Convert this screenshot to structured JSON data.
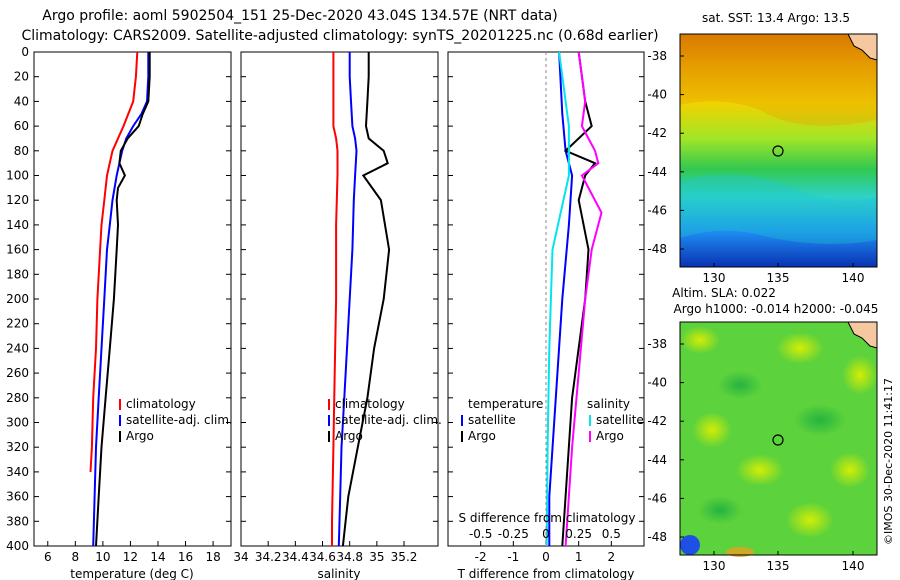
{
  "header": {
    "title_line1": "Argo profile: aoml 5902504_151 25-Dec-2020 43.04S 134.57E (NRT data)",
    "title_line2": "Climatology: CARS2009. Satellite-adjusted climatology: synTS_20201225.nc (0.68d earlier)"
  },
  "stamp": "©IMOS 30-Dec-2020 11:41:17",
  "colors": {
    "climatology": "#ff0000",
    "satellite": "#0000ff",
    "argo": "#000000",
    "sat_diff": "#00e5ee",
    "argo_diff": "#ff00ff"
  },
  "chart_data": [
    {
      "type": "line",
      "name": "temperature",
      "xlabel": "temperature (deg C)",
      "xlim": [
        5,
        19.3
      ],
      "xticks": [
        6,
        8,
        10,
        12,
        14,
        16,
        18
      ],
      "ylim": [
        0,
        400
      ],
      "yticks": [
        0,
        20,
        40,
        60,
        80,
        100,
        120,
        140,
        160,
        180,
        200,
        220,
        240,
        260,
        280,
        300,
        320,
        340,
        360,
        380,
        400
      ],
      "legend": [
        "climatology",
        "satellite-adj. clim.",
        "Argo"
      ],
      "series": [
        {
          "name": "climatology",
          "depth": [
            0,
            20,
            40,
            60,
            80,
            100,
            120,
            140,
            160,
            200,
            240,
            280,
            320,
            340
          ],
          "values": [
            12.5,
            12.4,
            12.2,
            11.5,
            10.7,
            10.3,
            10.1,
            9.9,
            9.8,
            9.6,
            9.5,
            9.3,
            9.2,
            9.1
          ]
        },
        {
          "name": "satellite-adj. clim.",
          "depth": [
            0,
            20,
            40,
            50,
            60,
            70,
            80,
            90,
            100,
            120,
            140,
            160,
            200,
            240,
            280,
            320,
            360,
            400
          ],
          "values": [
            13.3,
            13.3,
            13.2,
            12.8,
            12.2,
            11.7,
            11.4,
            11.2,
            11.0,
            10.7,
            10.5,
            10.3,
            10.1,
            9.9,
            9.7,
            9.5,
            9.4,
            9.3
          ]
        },
        {
          "name": "Argo",
          "depth": [
            0,
            20,
            40,
            50,
            60,
            70,
            80,
            90,
            100,
            110,
            120,
            140,
            160,
            200,
            240,
            280,
            320,
            360,
            400
          ],
          "values": [
            13.4,
            13.4,
            13.3,
            12.9,
            12.6,
            11.8,
            11.3,
            11.2,
            11.6,
            11.1,
            11.0,
            11.1,
            11.0,
            10.8,
            10.5,
            10.2,
            9.9,
            9.7,
            9.5
          ]
        }
      ]
    },
    {
      "type": "line",
      "name": "salinity",
      "xlabel": "salinity",
      "xlim": [
        34.0,
        35.45
      ],
      "xticks": [
        34,
        34.2,
        34.4,
        34.6,
        34.8,
        35,
        35.2
      ],
      "tick_labels": [
        "34",
        "34.2",
        "34.4",
        "34.6",
        "34.8",
        "35",
        "35.2"
      ],
      "ylim": [
        0,
        400
      ],
      "legend": [
        "climatology",
        "satellite-adj. clim.",
        "Argo"
      ],
      "series": [
        {
          "name": "climatology",
          "depth": [
            0,
            20,
            40,
            60,
            70,
            80,
            100,
            140,
            200,
            260,
            320,
            380,
            400
          ],
          "values": [
            34.68,
            34.68,
            34.68,
            34.68,
            34.7,
            34.71,
            34.71,
            34.7,
            34.7,
            34.69,
            34.68,
            34.67,
            34.67
          ]
        },
        {
          "name": "satellite-adj. clim.",
          "depth": [
            0,
            20,
            40,
            60,
            70,
            80,
            100,
            120,
            160,
            200,
            240,
            280,
            320,
            360,
            400
          ],
          "values": [
            34.8,
            34.8,
            34.81,
            34.82,
            34.84,
            34.85,
            34.84,
            34.83,
            34.82,
            34.8,
            34.78,
            34.76,
            34.74,
            34.73,
            34.72
          ]
        },
        {
          "name": "Argo",
          "depth": [
            0,
            20,
            40,
            60,
            70,
            80,
            90,
            100,
            120,
            160,
            200,
            240,
            280,
            320,
            360,
            400
          ],
          "values": [
            34.94,
            34.94,
            34.93,
            34.92,
            34.94,
            35.05,
            35.08,
            34.9,
            35.03,
            35.09,
            35.05,
            34.98,
            34.93,
            34.86,
            34.79,
            34.75
          ]
        }
      ]
    },
    {
      "type": "line",
      "name": "difference",
      "xlabel": "T difference from climatology",
      "top_label": "S difference from climatology",
      "xlim": [
        -3,
        3
      ],
      "xticks": [
        -2,
        -1,
        0,
        1,
        2
      ],
      "top_ticks": [
        "-0.5",
        "-0.25",
        "0",
        "0.25",
        "0.5"
      ],
      "ylim": [
        0,
        400
      ],
      "legend_left_title": "temperature",
      "legend_right_title": "salinity",
      "legend_left": [
        "satellite",
        "Argo"
      ],
      "legend_right": [
        "satellite",
        "Argo"
      ],
      "series": [
        {
          "name": "T satellite",
          "depth": [
            0,
            50,
            80,
            100,
            140,
            200,
            280,
            360,
            400
          ],
          "values": [
            0.4,
            0.5,
            0.6,
            0.8,
            0.7,
            0.5,
            0.3,
            0.1,
            0.1
          ]
        },
        {
          "name": "T Argo",
          "depth": [
            0,
            40,
            60,
            80,
            90,
            100,
            120,
            160,
            200,
            280,
            400
          ],
          "values": [
            1.0,
            1.2,
            1.4,
            0.6,
            1.5,
            1.2,
            1.0,
            1.3,
            1.2,
            0.8,
            0.5
          ]
        },
        {
          "name": "S satellite",
          "depth": [
            0,
            40,
            60,
            80,
            100,
            160,
            240,
            320,
            400
          ],
          "values": [
            0.4,
            0.6,
            0.7,
            0.7,
            0.7,
            0.2,
            0.1,
            0.05,
            0.02
          ]
        },
        {
          "name": "S Argo",
          "depth": [
            0,
            40,
            60,
            80,
            90,
            100,
            130,
            160,
            200,
            260,
            320,
            400
          ],
          "values": [
            1.0,
            1.2,
            1.1,
            1.5,
            1.6,
            1.1,
            1.7,
            1.4,
            1.2,
            1.0,
            0.8,
            0.6
          ]
        }
      ]
    },
    {
      "type": "heatmap",
      "name": "sst-map",
      "title": "sat. SST: 13.4 Argo: 13.5",
      "xticks": [
        "130",
        "135",
        "140"
      ],
      "yticks": [
        "-38",
        "-40",
        "-42",
        "-44",
        "-46",
        "-48"
      ],
      "argo_position": {
        "lon": 134.57,
        "lat": -43.04
      }
    },
    {
      "type": "heatmap",
      "name": "sla-map",
      "title_line1": "Altim. SLA: 0.022",
      "title_line2": "Argo h1000: -0.014 h2000: -0.045",
      "xticks": [
        "130",
        "135",
        "140"
      ],
      "yticks": [
        "-38",
        "-40",
        "-42",
        "-44",
        "-46",
        "-48"
      ],
      "argo_position": {
        "lon": 134.57,
        "lat": -43.04
      }
    }
  ]
}
